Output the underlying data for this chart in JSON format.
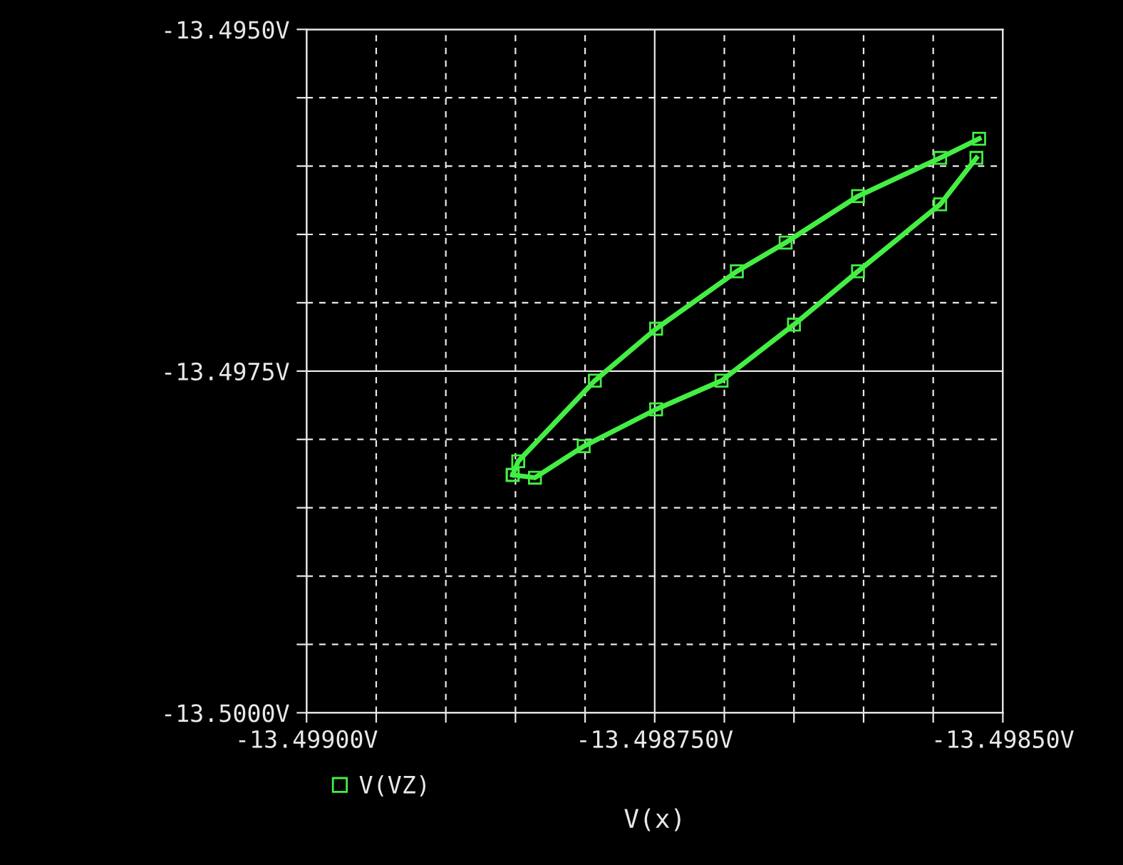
{
  "chart_data": {
    "type": "line",
    "xlabel": "V(x)",
    "series": [
      {
        "name": "V(VZ)",
        "color": "#44ee44",
        "x": [
          -13.498852,
          -13.498848,
          -13.498793,
          -13.498749,
          -13.498691,
          -13.498656,
          -13.498604,
          -13.498545,
          -13.498517
        ],
        "values": [
          -13.49826,
          -13.49816,
          -13.49757,
          -13.49719,
          -13.49677,
          -13.49656,
          -13.49622,
          -13.49594,
          -13.4958
        ]
      },
      {
        "color": "#44ee44",
        "x": [
          -13.498852,
          -13.498836,
          -13.498801,
          -13.498749,
          -13.498702,
          -13.49865,
          -13.498604,
          -13.498545,
          -13.498519
        ],
        "values": [
          -13.49826,
          -13.49828,
          -13.49805,
          -13.49778,
          -13.49757,
          -13.49716,
          -13.49677,
          -13.49628,
          -13.49594
        ]
      }
    ],
    "xlim": [
      -13.499,
      -13.4985
    ],
    "xticks": [
      {
        "value": -13.499,
        "label": "-13.49900V"
      },
      {
        "value": -13.49895,
        "label": null
      },
      {
        "value": -13.4989,
        "label": null
      },
      {
        "value": -13.49885,
        "label": null
      },
      {
        "value": -13.4988,
        "label": null
      },
      {
        "value": -13.49875,
        "label": "-13.498750V"
      },
      {
        "value": -13.4987,
        "label": null
      },
      {
        "value": -13.49865,
        "label": null
      },
      {
        "value": -13.4986,
        "label": null
      },
      {
        "value": -13.49855,
        "label": null
      },
      {
        "value": -13.4985,
        "label": "-13.49850V"
      }
    ],
    "ylim": [
      -13.5,
      -13.495
    ],
    "yticks": [
      {
        "value": -13.5,
        "label": "-13.5000V"
      },
      {
        "value": -13.4995,
        "label": null
      },
      {
        "value": -13.499,
        "label": null
      },
      {
        "value": -13.4985,
        "label": null
      },
      {
        "value": -13.498,
        "label": null
      },
      {
        "value": -13.4975,
        "label": "-13.4975V"
      },
      {
        "value": -13.497,
        "label": null
      },
      {
        "value": -13.4965,
        "label": null
      },
      {
        "value": -13.496,
        "label": null
      },
      {
        "value": -13.4955,
        "label": null
      },
      {
        "value": -13.495,
        "label": "-13.4950V"
      }
    ],
    "grid": true,
    "legend": "bottom left",
    "marker": "square",
    "line_style": "solid"
  }
}
